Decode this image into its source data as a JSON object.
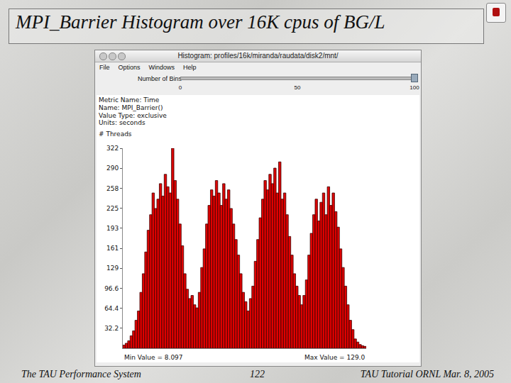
{
  "slide": {
    "title": "MPI_Barrier Histogram over 16K cpus of BG/L",
    "footer_left": "The TAU Performance System",
    "footer_center": "122",
    "footer_right": "TAU Tutorial ORNL Mar. 8, 2005"
  },
  "window": {
    "title": "Histogram: profiles/16k/miranda/raudata/disk2/mnt/",
    "menu": [
      "File",
      "Options",
      "Windows",
      "Help"
    ],
    "slider_label": "Number of Bins",
    "slider_ticks": [
      0,
      50,
      100
    ],
    "slider_value": 100
  },
  "chart_data": {
    "type": "histogram",
    "annotations": [
      "Metric Name: Time",
      "Name: MPI_Barrier()",
      "Value Type: exclusive",
      "Units: seconds",
      "Min Value = 8.097",
      "Max Value = 129.0"
    ],
    "y_label": "# Threads",
    "color": "#e00000",
    "bins": [
      8.097,
      9.31,
      10.52,
      11.72,
      12.93,
      14.14,
      15.35,
      16.56,
      17.77,
      18.98,
      20.19,
      21.4,
      22.61,
      23.81,
      25.02,
      26.23,
      27.44,
      28.65,
      29.86,
      31.07,
      32.28,
      33.49,
      34.7,
      35.9,
      37.11,
      38.32,
      39.53,
      40.74,
      41.95,
      43.16,
      44.37,
      45.58,
      46.79,
      47.99,
      49.2,
      50.41,
      51.62,
      52.83,
      54.04,
      55.25,
      56.46,
      57.67,
      58.88,
      60.08,
      61.29,
      62.5,
      63.71,
      64.92,
      66.13,
      67.34,
      68.55,
      69.76,
      70.97,
      72.17,
      73.38,
      74.59,
      75.8,
      77.01,
      78.22,
      79.43,
      80.64,
      81.85,
      83.06,
      84.26,
      85.47,
      86.68,
      87.89,
      89.1,
      90.31,
      91.52,
      92.73,
      93.94,
      95.15,
      96.35,
      97.56,
      98.77,
      99.98,
      101.19,
      102.4,
      103.61,
      104.82,
      106.03,
      107.24,
      108.44,
      109.65,
      110.86,
      112.07,
      113.28,
      114.49,
      115.7,
      116.91,
      118.12,
      119.33,
      120.53,
      121.74,
      122.95,
      124.16,
      125.37,
      126.58,
      127.79,
      129.0
    ],
    "values": [
      5,
      8,
      12,
      20,
      28,
      45,
      60,
      90,
      120,
      155,
      190,
      215,
      250,
      225,
      240,
      265,
      245,
      280,
      260,
      250,
      322,
      270,
      240,
      200,
      165,
      120,
      95,
      80,
      85,
      70,
      65,
      90,
      130,
      160,
      200,
      230,
      255,
      245,
      270,
      250,
      230,
      265,
      240,
      255,
      225,
      200,
      175,
      150,
      120,
      90,
      75,
      60,
      80,
      100,
      140,
      175,
      210,
      240,
      270,
      255,
      280,
      265,
      290,
      250,
      300,
      240,
      250,
      215,
      180,
      150,
      120,
      100,
      85,
      70,
      85,
      110,
      150,
      185,
      215,
      240,
      205,
      235,
      250,
      215,
      260,
      230,
      250,
      220,
      195,
      160,
      130,
      100,
      70,
      45,
      30,
      15,
      10,
      6,
      4,
      3
    ],
    "xlim": [
      8.097,
      129.0
    ],
    "ylim": [
      0,
      322
    ],
    "yticks": [
      32.2,
      64.4,
      96.6,
      {
        "value": 128.8,
        "label": "129"
      },
      161,
      {
        "value": 193.2,
        "label": "193"
      },
      {
        "value": 225.4,
        "label": "225"
      },
      {
        "value": 257.6,
        "label": "258"
      },
      {
        "value": 289.8,
        "label": "290"
      },
      322
    ],
    "tick_labels": "y",
    "grid": false
  }
}
